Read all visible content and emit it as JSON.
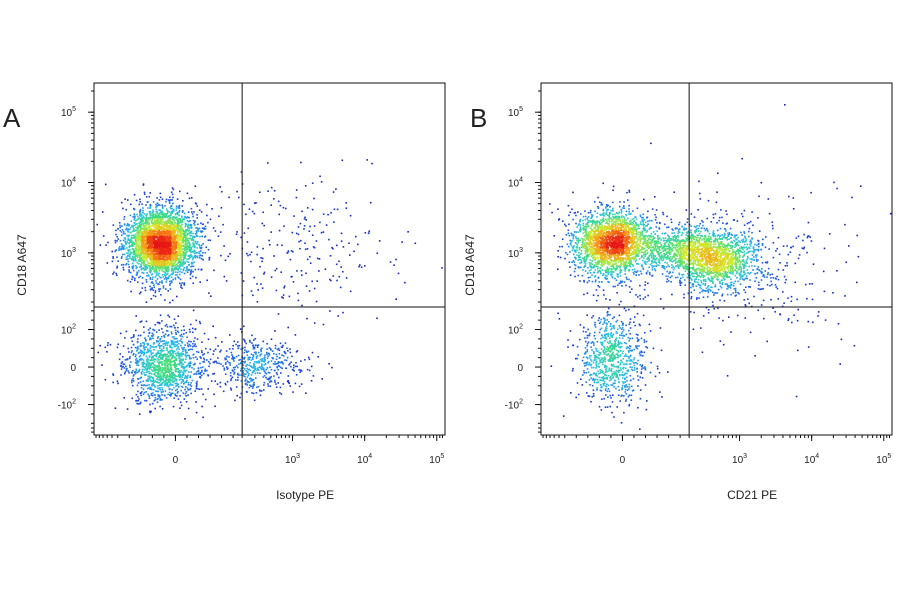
{
  "chart_data": [
    {
      "type": "scatter",
      "panel": "A",
      "title": "",
      "xlabel": "Isotype PE",
      "ylabel": "CD18 A647",
      "x_scale": "biexponential",
      "y_scale": "biexponential",
      "x_ticks": [
        {
          "value": 0,
          "base": "0",
          "exp": ""
        },
        {
          "value": 1000,
          "base": "10",
          "exp": "3"
        },
        {
          "value": 10000,
          "base": "10",
          "exp": "4"
        },
        {
          "value": 100000,
          "base": "10",
          "exp": "5"
        }
      ],
      "y_ticks": [
        {
          "value": -100,
          "base": "-10",
          "exp": "2"
        },
        {
          "value": 0,
          "base": "0",
          "exp": ""
        },
        {
          "value": 100,
          "base": "10",
          "exp": "2"
        },
        {
          "value": 1000,
          "base": "10",
          "exp": "3"
        },
        {
          "value": 10000,
          "base": "10",
          "exp": "4"
        },
        {
          "value": 100000,
          "base": "10",
          "exp": "5"
        }
      ],
      "gate": {
        "x": 200,
        "y": 170
      },
      "populations": [
        {
          "x": -40,
          "y": 1400,
          "sx": 0.45,
          "sy": 0.45,
          "weight": 0.6
        },
        {
          "x": -30,
          "y": 8,
          "sx": 0.5,
          "sy": 0.5,
          "weight": 0.22
        },
        {
          "x": 300,
          "y": 6,
          "sx": 0.6,
          "sy": 0.35,
          "weight": 0.08
        },
        {
          "x": 1200,
          "y": 1200,
          "sx": 1.2,
          "sy": 1.0,
          "weight": 0.04
        }
      ]
    },
    {
      "type": "scatter",
      "panel": "B",
      "title": "",
      "xlabel": "CD21 PE",
      "ylabel": "CD18 A647",
      "x_scale": "biexponential",
      "y_scale": "biexponential",
      "x_ticks": [
        {
          "value": 0,
          "base": "0",
          "exp": ""
        },
        {
          "value": 1000,
          "base": "10",
          "exp": "3"
        },
        {
          "value": 10000,
          "base": "10",
          "exp": "4"
        },
        {
          "value": 100000,
          "base": "10",
          "exp": "5"
        }
      ],
      "y_ticks": [
        {
          "value": -100,
          "base": "-10",
          "exp": "2"
        },
        {
          "value": 0,
          "base": "0",
          "exp": ""
        },
        {
          "value": 100,
          "base": "10",
          "exp": "2"
        },
        {
          "value": 1000,
          "base": "10",
          "exp": "3"
        },
        {
          "value": 10000,
          "base": "10",
          "exp": "4"
        },
        {
          "value": 100000,
          "base": "10",
          "exp": "5"
        }
      ],
      "gate": {
        "x": 200,
        "y": 170
      },
      "populations": [
        {
          "x": -30,
          "y": 1400,
          "sx": 0.5,
          "sy": 0.45,
          "weight": 0.42
        },
        {
          "x": 450,
          "y": 800,
          "sx": 0.55,
          "sy": 0.4,
          "weight": 0.25
        },
        {
          "x": 150,
          "y": 1200,
          "sx": 0.7,
          "sy": 0.3,
          "weight": 0.13
        },
        {
          "x": -30,
          "y": 20,
          "sx": 0.45,
          "sy": 0.6,
          "weight": 0.14
        },
        {
          "x": 1200,
          "y": 600,
          "sx": 1.2,
          "sy": 1.0,
          "weight": 0.06
        }
      ]
    }
  ]
}
